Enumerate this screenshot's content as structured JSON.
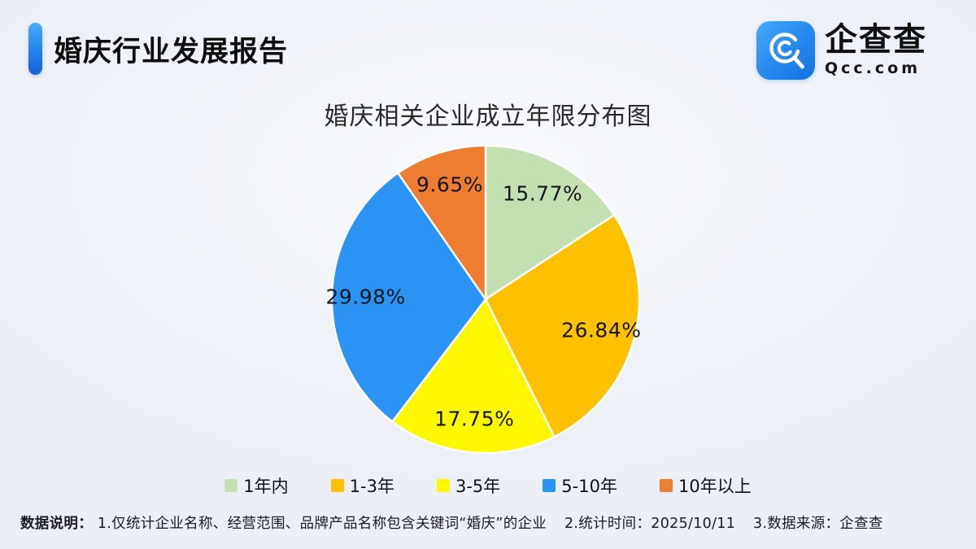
{
  "header": {
    "title": "婚庆行业发展报告",
    "logo": {
      "name": "企查查",
      "domain": "Qcc.com"
    }
  },
  "chart_data": {
    "type": "pie",
    "title": "婚庆相关企业成立年限分布图",
    "categories": [
      "1年内",
      "1-3年",
      "3-5年",
      "5-10年",
      "10年以上"
    ],
    "values": [
      15.77,
      26.84,
      17.75,
      29.98,
      9.65
    ],
    "labels": [
      "15.77%",
      "26.84%",
      "17.75%",
      "29.98%",
      "9.65%"
    ],
    "colors": [
      "#c4dfb2",
      "#ffc000",
      "#fdf800",
      "#2b93f3",
      "#ed7d31"
    ],
    "slice_border_color": "#ffffff",
    "start_angle_deg": 0,
    "direction": "clockwise",
    "legend_position": "bottom"
  },
  "footer": {
    "label": "数据说明：",
    "notes": [
      "1.仅统计企业名称、经营范围、品牌产品名称包含关键词“婚庆”的企业",
      "2.统计时间：2025/10/11",
      "3.数据来源：企查查"
    ]
  }
}
